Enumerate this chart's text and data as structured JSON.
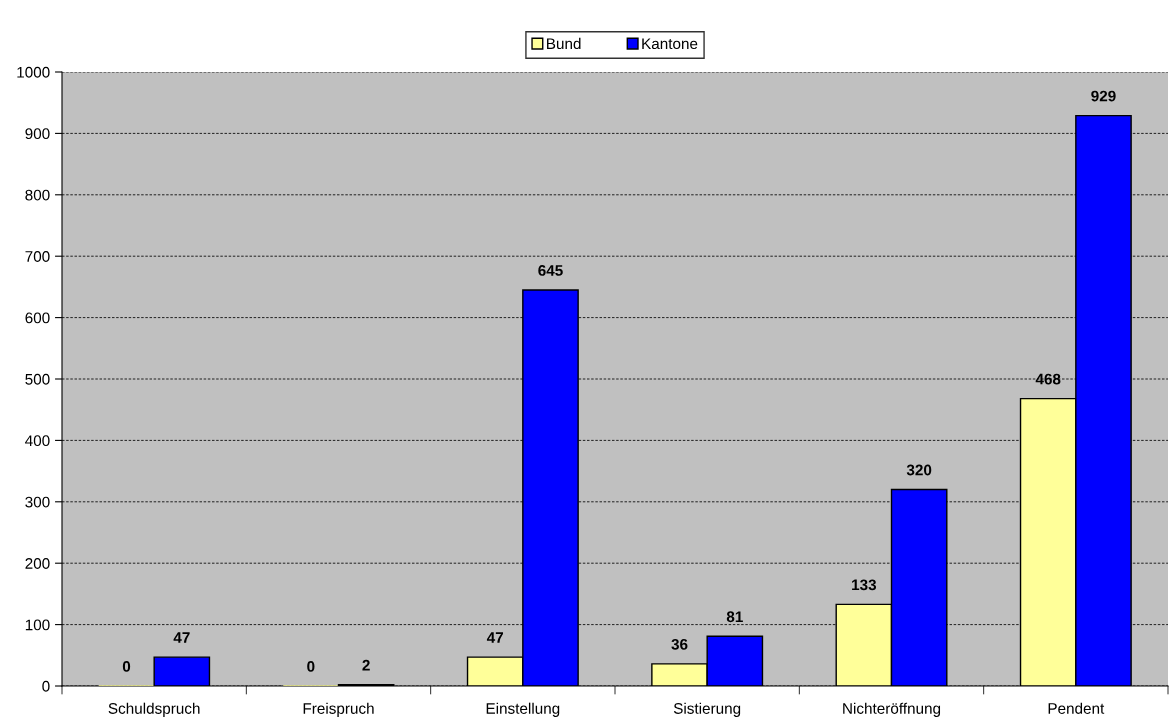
{
  "chart_data": {
    "type": "bar",
    "categories": [
      "Schuldspruch",
      "Freispruch",
      "Einstellung",
      "Sistierung",
      "Nichteröffnung",
      "Pendent"
    ],
    "series": [
      {
        "name": "Bund",
        "color": "#ffff99",
        "values": [
          0,
          0,
          47,
          36,
          133,
          468
        ]
      },
      {
        "name": "Kantone",
        "color": "#0000ff",
        "values": [
          47,
          2,
          645,
          81,
          320,
          929
        ]
      }
    ],
    "ylim": [
      0,
      1000
    ],
    "yticks": [
      0,
      100,
      200,
      300,
      400,
      500,
      600,
      700,
      800,
      900,
      1000
    ],
    "grid": "y",
    "legend": "top",
    "data_labels": true
  }
}
